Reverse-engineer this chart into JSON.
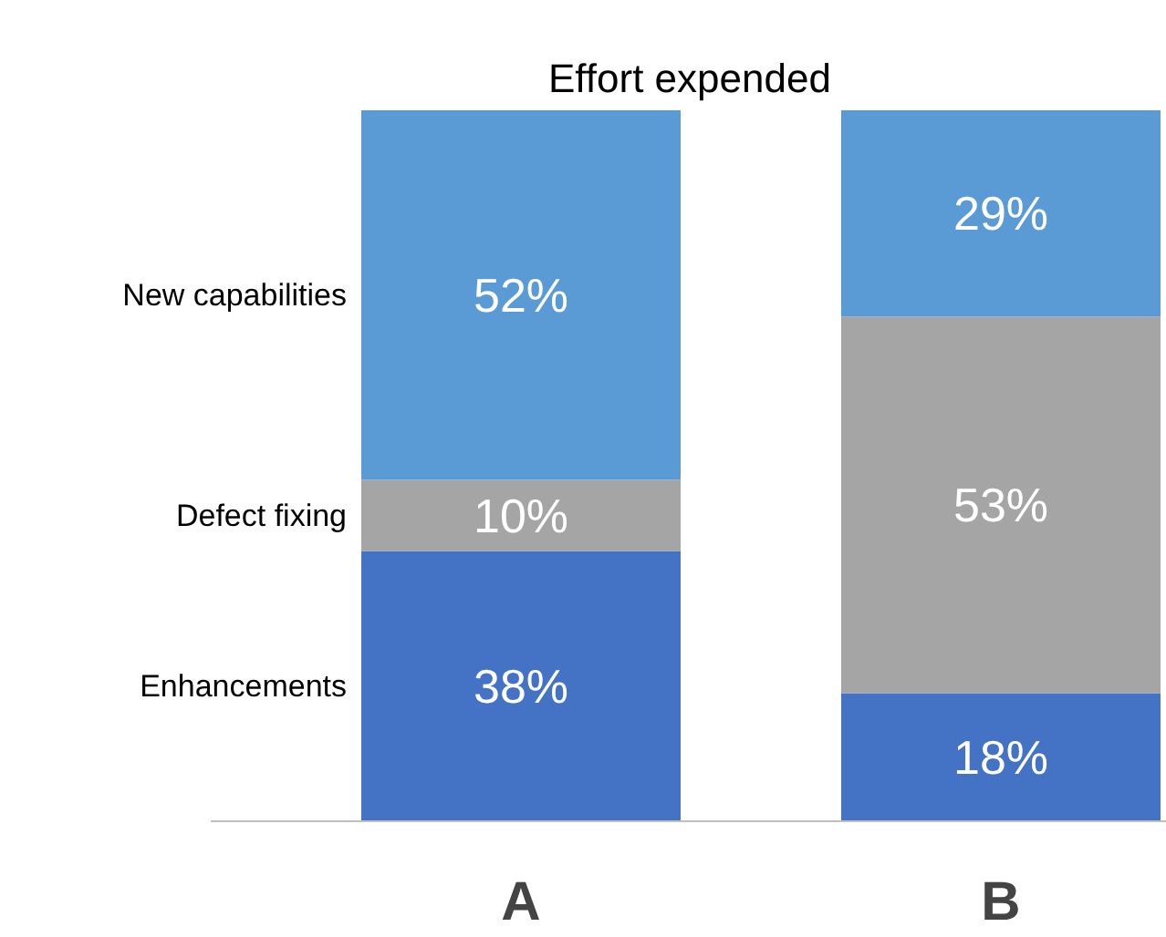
{
  "chart_data": {
    "type": "bar",
    "title": "Effort expended",
    "categories": [
      "A",
      "B"
    ],
    "stacked": true,
    "series": [
      {
        "name": "Enhancements",
        "color": "#4472c4",
        "values": [
          38,
          18
        ],
        "value_labels": [
          "38%",
          "18%"
        ]
      },
      {
        "name": "Defect fixing",
        "color": "#a5a5a5",
        "values": [
          10,
          53
        ],
        "value_labels": [
          "10%",
          "53%"
        ]
      },
      {
        "name": "New capabilities",
        "color": "#5b9bd5",
        "values": [
          52,
          29
        ],
        "value_labels": [
          "52%",
          "29%"
        ]
      }
    ]
  }
}
